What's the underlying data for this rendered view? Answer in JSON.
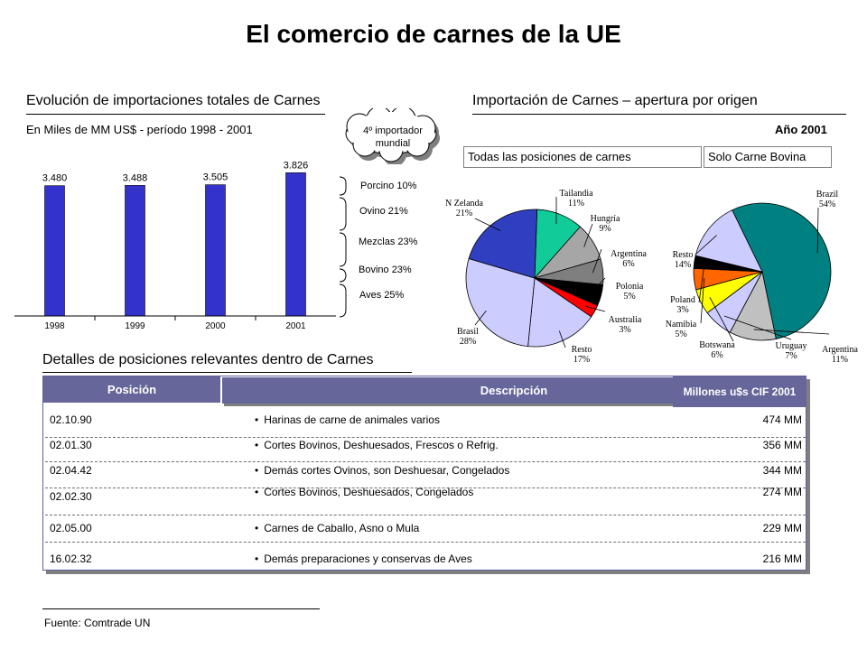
{
  "page": {
    "title": "El comercio de carnes de la UE"
  },
  "left_section": {
    "title": "Evolución de importaciones totales de Carnes",
    "subtitle": "En Miles de MM US$ - período 1998 - 2001",
    "callout": {
      "line1": "4º importador",
      "line2": "mundial"
    },
    "breakdown": [
      {
        "label": "Porcino 10%"
      },
      {
        "label": "Ovino 21%"
      },
      {
        "label": "Mezclas 23%"
      },
      {
        "label": "Bovino 23%"
      },
      {
        "label": "Aves 25%"
      }
    ]
  },
  "right_section": {
    "title": "Importación de Carnes – apertura por origen",
    "year": "Año 2001",
    "tab_all": "Todas las posiciones de carnes",
    "tab_beef": "Solo Carne Bovina"
  },
  "table_section": {
    "title": "Detalles de posiciones relevantes dentro de Carnes",
    "headers": {
      "position": "Posición",
      "description": "Descripción",
      "value": "Millones u$s CIF 2001"
    },
    "rows": [
      {
        "code": "02.10.90",
        "desc": "Harinas de carne de animales varios",
        "value": "474 MM"
      },
      {
        "code": "02.01.30",
        "desc": "Cortes Bovinos, Deshuesados, Frescos o Refrig.",
        "value": "356 MM"
      },
      {
        "code": "02.04.42",
        "desc": "Demás cortes Ovinos, son Deshuesar, Congelados",
        "value": "344 MM"
      },
      {
        "code": "02.02.30",
        "desc": "Cortes Bovinos, Deshuesados, Congelados",
        "value": "274 MM"
      },
      {
        "code": "02.05.00",
        "desc": "Carnes de Caballo, Asno o Mula",
        "value": "229 MM"
      },
      {
        "code": "16.02.32",
        "desc": "Demás preparaciones y conservas de Aves",
        "value": "216 MM"
      }
    ],
    "bullet": "•"
  },
  "footer": {
    "source": "Fuente: Comtrade UN"
  },
  "chart_data": [
    {
      "type": "bar",
      "categories": [
        "1998",
        "1999",
        "2000",
        "2001"
      ],
      "values": [
        3.48,
        3.488,
        3.505,
        3.826
      ],
      "value_labels": [
        "3.480",
        "3.488",
        "3.505",
        "3.826"
      ],
      "title": "Evolución de importaciones totales de Carnes",
      "subtitle": "En Miles de MM US$ - período 1998 - 2001",
      "ylim": [
        0,
        4.1
      ],
      "color": "#3333cc",
      "grid": false
    },
    {
      "type": "pie",
      "title": "Todas las posiciones de carnes",
      "slices": [
        {
          "name": "Tailandia",
          "pct": "11%",
          "value": 11,
          "color": "#11cc99"
        },
        {
          "name": "Hungría",
          "pct": "9%",
          "value": 9,
          "color": "#a6a6a6"
        },
        {
          "name": "Argentina",
          "pct": "6%",
          "value": 6,
          "color": "#7f7f7f"
        },
        {
          "name": "Polonia",
          "pct": "5%",
          "value": 5,
          "color": "#000000"
        },
        {
          "name": "Australia",
          "pct": "3%",
          "value": 3,
          "color": "#ff0000"
        },
        {
          "name": "Resto",
          "pct": "17%",
          "value": 17,
          "color": "#ccccff"
        },
        {
          "name": "Brasil",
          "pct": "28%",
          "value": 28,
          "color": "#ccccff"
        },
        {
          "name": "N Zelanda",
          "pct": "21%",
          "value": 21,
          "color": "#2f3fbf"
        }
      ]
    },
    {
      "type": "pie",
      "title": "Solo Carne Bovina",
      "slices": [
        {
          "name": "Brazil",
          "pct": "54%",
          "value": 54,
          "color": "#008080"
        },
        {
          "name": "Argentina",
          "pct": "11%",
          "value": 11,
          "color": "#c0c0c0"
        },
        {
          "name": "Uruguay",
          "pct": "7%",
          "value": 7,
          "color": "#ccccff"
        },
        {
          "name": "Botswana",
          "pct": "6%",
          "value": 6,
          "color": "#ffff00"
        },
        {
          "name": "Namibia",
          "pct": "5%",
          "value": 5,
          "color": "#ff6600"
        },
        {
          "name": "Poland",
          "pct": "3%",
          "value": 3,
          "color": "#000000"
        },
        {
          "name": "Resto",
          "pct": "14%",
          "value": 14,
          "color": "#ccccff"
        }
      ]
    }
  ]
}
